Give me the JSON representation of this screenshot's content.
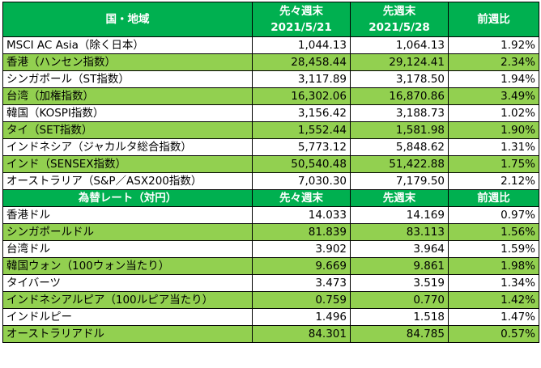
{
  "index_table": {
    "header": {
      "region": "国・地域",
      "prev_week_line1": "先々週末",
      "prev_week_line2": "2021/5/21",
      "last_week_line1": "先週末",
      "last_week_line2": "2021/5/28",
      "change": "前週比"
    },
    "rows": [
      {
        "name": "MSCI AC Asia（除く日本）",
        "prev": "1,044.13",
        "last": "1,064.13",
        "change": "1.92%"
      },
      {
        "name": "香港（ハンセン指数）",
        "prev": "28,458.44",
        "last": "29,124.41",
        "change": "2.34%"
      },
      {
        "name": "シンガポール（ST指数）",
        "prev": "3,117.89",
        "last": "3,178.50",
        "change": "1.94%"
      },
      {
        "name": "台湾（加権指数）",
        "prev": "16,302.06",
        "last": "16,870.86",
        "change": "3.49%"
      },
      {
        "name": "韓国（KOSPI指数）",
        "prev": "3,156.42",
        "last": "3,188.73",
        "change": "1.02%"
      },
      {
        "name": "タイ（SET指数）",
        "prev": "1,552.44",
        "last": "1,581.98",
        "change": "1.90%"
      },
      {
        "name": "インドネシア（ジャカルタ総合指数）",
        "prev": "5,773.12",
        "last": "5,848.62",
        "change": "1.31%"
      },
      {
        "name": "インド（SENSEX指数）",
        "prev": "50,540.48",
        "last": "51,422.88",
        "change": "1.75%"
      },
      {
        "name": "オーストラリア（S&P／ASX200指数）",
        "prev": "7,030.30",
        "last": "7,179.50",
        "change": "2.12%"
      }
    ]
  },
  "fx_table": {
    "header": {
      "region": "為替レート（対円）",
      "prev_week": "先々週末",
      "last_week": "先週末",
      "change": "前週比"
    },
    "rows": [
      {
        "name": "香港ドル",
        "prev": "14.033",
        "last": "14.169",
        "change": "0.97%"
      },
      {
        "name": "シンガポールドル",
        "prev": "81.839",
        "last": "83.113",
        "change": "1.56%"
      },
      {
        "name": "台湾ドル",
        "prev": "3.902",
        "last": "3.964",
        "change": "1.59%"
      },
      {
        "name": "韓国ウォン（100ウォン当たり）",
        "prev": "9.669",
        "last": "9.861",
        "change": "1.98%"
      },
      {
        "name": "タイバーツ",
        "prev": "3.473",
        "last": "3.519",
        "change": "1.34%"
      },
      {
        "name": "インドネシアルピア（100ルピア当たり）",
        "prev": "0.759",
        "last": "0.770",
        "change": "1.42%"
      },
      {
        "name": "インドルピー",
        "prev": "1.496",
        "last": "1.518",
        "change": "1.47%"
      },
      {
        "name": "オーストラリアドル",
        "prev": "84.301",
        "last": "84.785",
        "change": "0.57%"
      }
    ]
  },
  "colors": {
    "header_green": "#00b050",
    "row_light_green": "#92d050",
    "row_white": "#ffffff"
  }
}
